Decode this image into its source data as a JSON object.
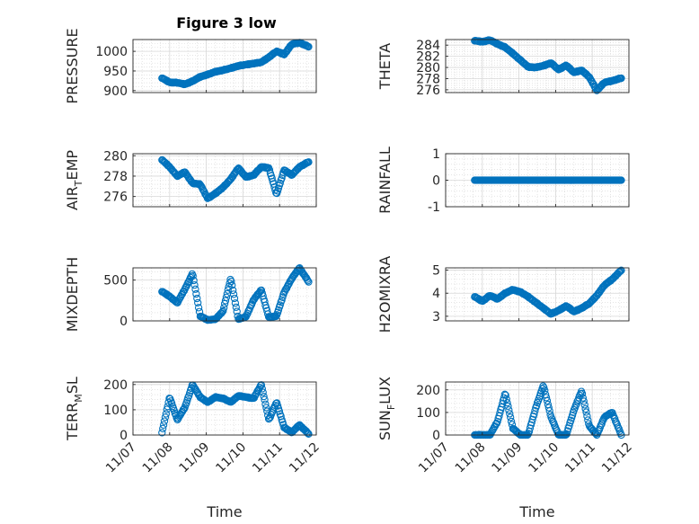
{
  "figure": {
    "title": "Figure 3 low",
    "x_axis_label": "Time",
    "date_ticks": [
      "11/07",
      "11/08",
      "11/09",
      "11/10",
      "11/11",
      "11/12"
    ],
    "marker_color": "#0072bd",
    "marker_shape": "circle"
  },
  "chart_data": [
    {
      "type": "scatter",
      "ylabel": "PRESSURE",
      "ylim": [
        895,
        1030
      ],
      "yticks": [
        "900",
        "950",
        "1000"
      ],
      "grid": true,
      "x": [
        "2015-11-07T19:00",
        "2015-11-08T00:00",
        "2015-11-08T05:00",
        "2015-11-08T10:00",
        "2015-11-08T15:00",
        "2015-11-08T20:00",
        "2015-11-09T01:00",
        "2015-11-09T06:00",
        "2015-11-09T11:00",
        "2015-11-09T16:00",
        "2015-11-09T21:00",
        "2015-11-10T02:00",
        "2015-11-10T07:00",
        "2015-11-10T12:00",
        "2015-11-10T17:00",
        "2015-11-10T22:00",
        "2015-11-11T03:00",
        "2015-11-11T08:00",
        "2015-11-11T13:00",
        "2015-11-11T19:00"
      ],
      "y": [
        932,
        921,
        920,
        916,
        924,
        935,
        941,
        948,
        952,
        957,
        963,
        966,
        969,
        972,
        985,
        1000,
        992,
        1018,
        1022,
        1012
      ]
    },
    {
      "type": "scatter",
      "ylabel": "THETA",
      "ylim": [
        275.5,
        285
      ],
      "yticks": [
        "276",
        "278",
        "280",
        "282",
        "284"
      ],
      "grid": true,
      "x": [
        "2015-11-07T19:00",
        "2015-11-08T00:00",
        "2015-11-08T05:00",
        "2015-11-08T10:00",
        "2015-11-08T15:00",
        "2015-11-08T20:00",
        "2015-11-09T01:00",
        "2015-11-09T06:00",
        "2015-11-09T11:00",
        "2015-11-09T16:00",
        "2015-11-09T21:00",
        "2015-11-10T02:00",
        "2015-11-10T07:00",
        "2015-11-10T12:00",
        "2015-11-10T17:00",
        "2015-11-10T22:00",
        "2015-11-11T03:00",
        "2015-11-11T08:00",
        "2015-11-11T13:00",
        "2015-11-11T19:00"
      ],
      "y": [
        284.8,
        284.6,
        284.9,
        284.2,
        283.6,
        282.5,
        281.3,
        280.1,
        280.0,
        280.3,
        280.8,
        279.6,
        280.4,
        279.1,
        279.5,
        278.3,
        275.9,
        277.3,
        277.6,
        278.1
      ]
    },
    {
      "type": "scatter",
      "ylabel": "AIR_TEMP",
      "ylim": [
        275,
        280.2
      ],
      "yticks": [
        "276",
        "278",
        "280"
      ],
      "grid": true,
      "x": [
        "2015-11-07T19:00",
        "2015-11-08T00:00",
        "2015-11-08T05:00",
        "2015-11-08T10:00",
        "2015-11-08T15:00",
        "2015-11-08T20:00",
        "2015-11-09T01:00",
        "2015-11-09T06:00",
        "2015-11-09T11:00",
        "2015-11-09T16:00",
        "2015-11-09T21:00",
        "2015-11-10T02:00",
        "2015-11-10T07:00",
        "2015-11-10T12:00",
        "2015-11-10T17:00",
        "2015-11-10T22:00",
        "2015-11-11T03:00",
        "2015-11-11T08:00",
        "2015-11-11T13:00",
        "2015-11-11T19:00"
      ],
      "y": [
        279.6,
        278.9,
        278.0,
        278.4,
        277.3,
        277.2,
        275.8,
        276.3,
        276.9,
        277.7,
        278.8,
        277.9,
        278.1,
        278.9,
        278.8,
        276.2,
        278.6,
        278.1,
        278.9,
        279.4
      ]
    },
    {
      "type": "scatter",
      "ylabel": "RAINFALL",
      "ylim": [
        -1,
        1
      ],
      "yticks": [
        "-1",
        "0",
        "1"
      ],
      "grid": true,
      "x": [
        "2015-11-07T19:00",
        "2015-11-08T00:00",
        "2015-11-08T05:00",
        "2015-11-08T10:00",
        "2015-11-08T15:00",
        "2015-11-08T20:00",
        "2015-11-09T01:00",
        "2015-11-09T06:00",
        "2015-11-09T11:00",
        "2015-11-09T16:00",
        "2015-11-09T21:00",
        "2015-11-10T02:00",
        "2015-11-10T07:00",
        "2015-11-10T12:00",
        "2015-11-10T17:00",
        "2015-11-10T22:00",
        "2015-11-11T03:00",
        "2015-11-11T08:00",
        "2015-11-11T13:00",
        "2015-11-11T19:00"
      ],
      "y": [
        0,
        0,
        0,
        0,
        0,
        0,
        0,
        0,
        0,
        0,
        0,
        0,
        0,
        0,
        0,
        0,
        0,
        0,
        0,
        0
      ]
    },
    {
      "type": "scatter",
      "ylabel": "MIXDEPTH",
      "ylim": [
        0,
        650
      ],
      "yticks": [
        "0",
        "500"
      ],
      "grid": true,
      "x": [
        "2015-11-07T19:00",
        "2015-11-08T00:00",
        "2015-11-08T05:00",
        "2015-11-08T10:00",
        "2015-11-08T15:00",
        "2015-11-08T20:00",
        "2015-11-09T01:00",
        "2015-11-09T06:00",
        "2015-11-09T11:00",
        "2015-11-09T16:00",
        "2015-11-09T21:00",
        "2015-11-10T02:00",
        "2015-11-10T07:00",
        "2015-11-10T12:00",
        "2015-11-10T17:00",
        "2015-11-10T22:00",
        "2015-11-11T03:00",
        "2015-11-11T08:00",
        "2015-11-11T13:00",
        "2015-11-11T19:00"
      ],
      "y": [
        360,
        300,
        220,
        390,
        580,
        60,
        10,
        20,
        120,
        520,
        20,
        50,
        260,
        380,
        40,
        60,
        350,
        520,
        650,
        480
      ]
    },
    {
      "type": "scatter",
      "ylabel": "H2OMIXRA",
      "ylim": [
        2.8,
        5.1
      ],
      "yticks": [
        "3",
        "4",
        "5"
      ],
      "grid": true,
      "x": [
        "2015-11-07T19:00",
        "2015-11-08T00:00",
        "2015-11-08T05:00",
        "2015-11-08T10:00",
        "2015-11-08T15:00",
        "2015-11-08T20:00",
        "2015-11-09T01:00",
        "2015-11-09T06:00",
        "2015-11-09T11:00",
        "2015-11-09T16:00",
        "2015-11-09T21:00",
        "2015-11-10T02:00",
        "2015-11-10T07:00",
        "2015-11-10T12:00",
        "2015-11-10T17:00",
        "2015-11-10T22:00",
        "2015-11-11T03:00",
        "2015-11-11T08:00",
        "2015-11-11T13:00",
        "2015-11-11T19:00"
      ],
      "y": [
        3.85,
        3.65,
        3.9,
        3.75,
        4.0,
        4.15,
        4.05,
        3.85,
        3.6,
        3.35,
        3.1,
        3.25,
        3.45,
        3.2,
        3.35,
        3.55,
        3.9,
        4.35,
        4.6,
        5.0
      ]
    },
    {
      "type": "scatter",
      "ylabel": "TERR_MSL",
      "ylim": [
        0,
        210
      ],
      "yticks": [
        "0",
        "100",
        "200"
      ],
      "grid": true,
      "x": [
        "2015-11-07T19:00",
        "2015-11-08T00:00",
        "2015-11-08T05:00",
        "2015-11-08T10:00",
        "2015-11-08T15:00",
        "2015-11-08T20:00",
        "2015-11-09T01:00",
        "2015-11-09T06:00",
        "2015-11-09T11:00",
        "2015-11-09T16:00",
        "2015-11-09T21:00",
        "2015-11-10T02:00",
        "2015-11-10T07:00",
        "2015-11-10T12:00",
        "2015-11-10T17:00",
        "2015-11-10T22:00",
        "2015-11-11T03:00",
        "2015-11-11T08:00",
        "2015-11-11T13:00",
        "2015-11-11T19:00"
      ],
      "y": [
        10,
        150,
        60,
        110,
        200,
        150,
        130,
        150,
        145,
        130,
        155,
        150,
        145,
        200,
        60,
        130,
        30,
        10,
        40,
        5
      ]
    },
    {
      "type": "scatter",
      "ylabel": "SUN_FLUX",
      "ylim": [
        0,
        235
      ],
      "yticks": [
        "0",
        "100",
        "200"
      ],
      "grid": true,
      "x": [
        "2015-11-07T19:00",
        "2015-11-08T00:00",
        "2015-11-08T05:00",
        "2015-11-08T10:00",
        "2015-11-08T15:00",
        "2015-11-08T20:00",
        "2015-11-09T01:00",
        "2015-11-09T06:00",
        "2015-11-09T11:00",
        "2015-11-09T16:00",
        "2015-11-09T21:00",
        "2015-11-10T02:00",
        "2015-11-10T07:00",
        "2015-11-10T12:00",
        "2015-11-10T17:00",
        "2015-11-10T22:00",
        "2015-11-11T03:00",
        "2015-11-11T08:00",
        "2015-11-11T13:00",
        "2015-11-11T19:00"
      ],
      "y": [
        0,
        0,
        0,
        60,
        185,
        30,
        0,
        0,
        120,
        220,
        80,
        0,
        0,
        110,
        195,
        40,
        0,
        80,
        100,
        0
      ]
    }
  ]
}
